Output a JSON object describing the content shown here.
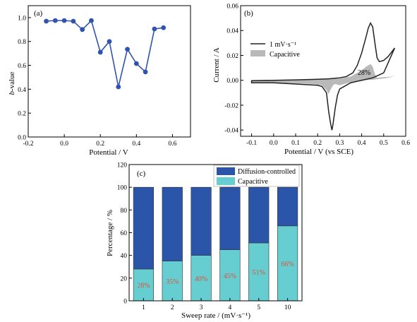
{
  "chart_data": [
    {
      "panel": "(a)",
      "type": "line",
      "xlabel": "Potential / V",
      "ylabel_italic": "b",
      "ylabel_rest": "-value",
      "xlim": [
        -0.2,
        0.7
      ],
      "ylim": [
        0.0,
        1.1
      ],
      "xticks": [
        -0.2,
        0.0,
        0.2,
        0.4,
        0.6
      ],
      "xtick_labels": [
        "-0.2",
        "0.0",
        "0.2",
        "0.4",
        "0.6"
      ],
      "yticks": [
        0.0,
        0.2,
        0.4,
        0.6,
        0.8,
        1.0
      ],
      "ytick_labels": [
        "0.0",
        "0.2",
        "0.4",
        "0.6",
        "0.8",
        "1.0"
      ],
      "x": [
        -0.1,
        -0.05,
        0.0,
        0.05,
        0.1,
        0.15,
        0.2,
        0.25,
        0.3,
        0.35,
        0.4,
        0.45,
        0.5,
        0.55
      ],
      "y": [
        0.97,
        0.975,
        0.975,
        0.97,
        0.9,
        0.975,
        0.71,
        0.8,
        0.42,
        0.735,
        0.615,
        0.545,
        0.905,
        0.915
      ],
      "color": "#2f54b0"
    },
    {
      "panel": "(b)",
      "type": "area",
      "xlabel": "Potential / V (vs SCE)",
      "ylabel": "Current / A",
      "xlim": [
        -0.15,
        0.6
      ],
      "ylim": [
        -0.045,
        0.06
      ],
      "xticks": [
        -0.1,
        0.0,
        0.1,
        0.2,
        0.3,
        0.4,
        0.5,
        0.6
      ],
      "xtick_labels": [
        "-0.1",
        "0.0",
        "0.1",
        "0.2",
        "0.3",
        "0.4",
        "0.5",
        "0.6"
      ],
      "yticks": [
        -0.04,
        -0.02,
        0.0,
        0.02,
        0.04,
        0.06
      ],
      "ytick_labels": [
        "-0.04",
        "-0.02",
        "0.00",
        "0.02",
        "0.04",
        "0.06"
      ],
      "legend": [
        "1 mV·s⁻¹",
        "Capacitive"
      ],
      "annotation": "28%",
      "cv_upper": [
        [
          -0.1,
          -0.0003
        ],
        [
          0.0,
          0.0
        ],
        [
          0.1,
          0.0003
        ],
        [
          0.2,
          0.0008
        ],
        [
          0.25,
          0.0012
        ],
        [
          0.3,
          0.002
        ],
        [
          0.33,
          0.003
        ],
        [
          0.36,
          0.006
        ],
        [
          0.38,
          0.012
        ],
        [
          0.4,
          0.022
        ],
        [
          0.42,
          0.035
        ],
        [
          0.43,
          0.042
        ],
        [
          0.44,
          0.046
        ],
        [
          0.45,
          0.043
        ],
        [
          0.46,
          0.03
        ],
        [
          0.47,
          0.018
        ],
        [
          0.48,
          0.015
        ],
        [
          0.5,
          0.016
        ],
        [
          0.52,
          0.019
        ],
        [
          0.55,
          0.026
        ]
      ],
      "cv_lower": [
        [
          0.55,
          0.026
        ],
        [
          0.5,
          0.006
        ],
        [
          0.45,
          0.002
        ],
        [
          0.4,
          0.0
        ],
        [
          0.35,
          -0.002
        ],
        [
          0.3,
          -0.007
        ],
        [
          0.29,
          -0.012
        ],
        [
          0.28,
          -0.022
        ],
        [
          0.27,
          -0.035
        ],
        [
          0.265,
          -0.04
        ],
        [
          0.26,
          -0.036
        ],
        [
          0.25,
          -0.025
        ],
        [
          0.24,
          -0.01
        ],
        [
          0.22,
          -0.005
        ],
        [
          0.2,
          -0.004
        ],
        [
          0.1,
          -0.003
        ],
        [
          0.0,
          -0.002
        ],
        [
          -0.1,
          -0.002
        ]
      ],
      "capacitive_upper": [
        [
          -0.1,
          -0.0004
        ],
        [
          0.0,
          0.0001
        ],
        [
          0.1,
          0.0004
        ],
        [
          0.2,
          0.0008
        ],
        [
          0.3,
          0.0015
        ],
        [
          0.35,
          0.003
        ],
        [
          0.38,
          0.006
        ],
        [
          0.4,
          0.008
        ],
        [
          0.42,
          0.011
        ],
        [
          0.44,
          0.013
        ],
        [
          0.45,
          0.011
        ],
        [
          0.46,
          0.005
        ],
        [
          0.47,
          0.002
        ],
        [
          0.5,
          0.0025
        ],
        [
          0.55,
          0.003
        ]
      ],
      "capacitive_lower": [
        [
          0.55,
          0.003
        ],
        [
          0.5,
          0.0015
        ],
        [
          0.45,
          0.0005
        ],
        [
          0.4,
          0.0
        ],
        [
          0.35,
          -0.0015
        ],
        [
          0.3,
          -0.004
        ],
        [
          0.28,
          -0.003
        ],
        [
          0.27,
          -0.004
        ],
        [
          0.26,
          -0.007
        ],
        [
          0.25,
          -0.011
        ],
        [
          0.24,
          -0.008
        ],
        [
          0.22,
          -0.004
        ],
        [
          0.18,
          -0.003
        ],
        [
          0.1,
          -0.0025
        ],
        [
          0.0,
          -0.0018
        ],
        [
          -0.1,
          -0.0015
        ]
      ],
      "colors": {
        "cv": "#222222",
        "capacitive": "#b9b9b9"
      }
    },
    {
      "panel": "(c)",
      "type": "bar",
      "stacked": true,
      "xlabel": "Sweep rate / (mV·s⁻¹)",
      "ylabel": "Percentage / %",
      "categories": [
        "1",
        "2",
        "3",
        "4",
        "5",
        "10"
      ],
      "ylim": [
        0,
        120
      ],
      "yticks": [
        0,
        20,
        40,
        60,
        80,
        100,
        120
      ],
      "ytick_labels": [
        "0",
        "20",
        "40",
        "60",
        "80",
        "100",
        "120"
      ],
      "series": [
        {
          "name": "Capacitive",
          "values": [
            28,
            35,
            40,
            45,
            51,
            66
          ],
          "color": "#66cdd1"
        },
        {
          "name": "Diffusion-controlled",
          "values": [
            72,
            65,
            60,
            55,
            49,
            34
          ],
          "color": "#2b55a8"
        }
      ],
      "data_labels": [
        "28%",
        "35%",
        "40%",
        "45%",
        "51%",
        "66%"
      ],
      "data_label_color": "#d9553d",
      "legend_placement": "top-right"
    }
  ]
}
